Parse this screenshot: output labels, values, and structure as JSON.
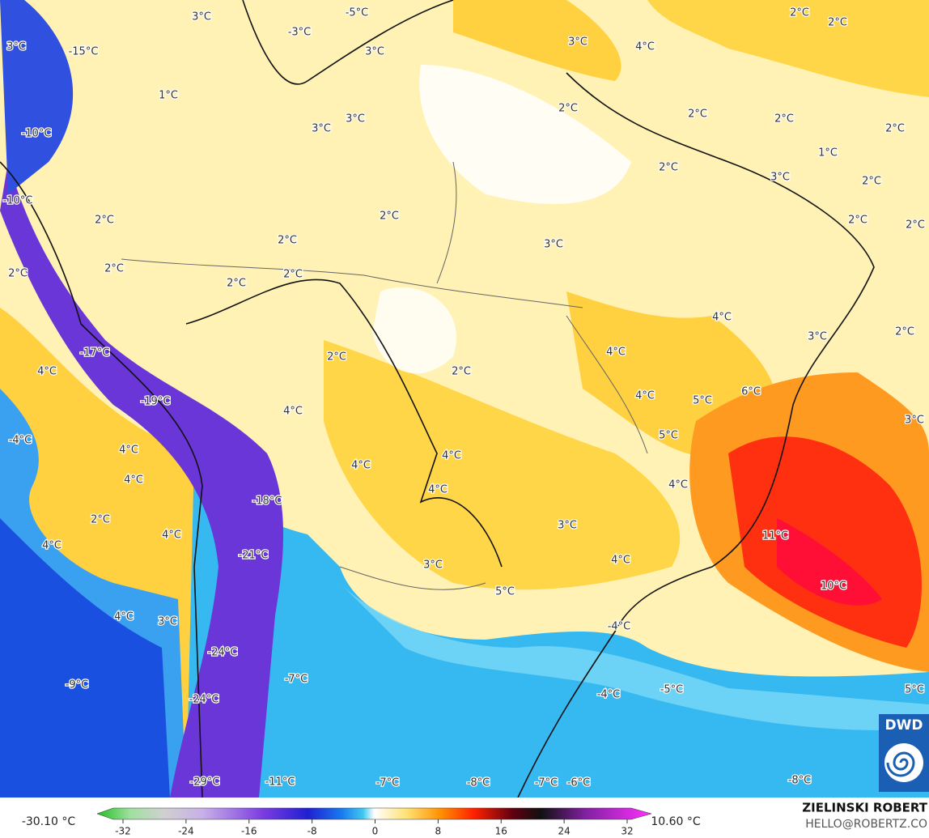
{
  "map": {
    "labels": [
      "3°C",
      "-5°C",
      "-3°C",
      "-15°C",
      "3°C",
      "3°C",
      "3°C",
      "4°C",
      "2°C",
      "2°C",
      "1°C",
      "3°C",
      "3°C",
      "2°C",
      "2°C",
      "2°C",
      "2°C",
      "-10°C",
      "1°C",
      "2°C",
      "3°C",
      "2°C",
      "-10°C",
      "2°C",
      "2°C",
      "2°C",
      "2°C",
      "2°C",
      "3°C",
      "2°C",
      "2°C",
      "2°C",
      "2°C",
      "4°C",
      "3°C",
      "2°C",
      "-17°C",
      "4°C",
      "2°C",
      "4°C",
      "2°C",
      "6°C",
      "4°C",
      "5°C",
      "-19°C",
      "4°C",
      "3°C",
      "-4°C",
      "5°C",
      "4°C",
      "4°C",
      "4°C",
      "4°C",
      "4°C",
      "4°C",
      "-18°C",
      "2°C",
      "3°C",
      "11°C",
      "4°C",
      "4°C",
      "-21°C",
      "4°C",
      "3°C",
      "10°C",
      "5°C",
      "4°C",
      "3°C",
      "-4°C",
      "-24°C",
      "-7°C",
      "-9°C",
      "-5°C",
      "-4°C",
      "5°C",
      "-24°C",
      "-29°C",
      "-11°C",
      "-7°C",
      "-8°C",
      "-7°C",
      "-6°C",
      "-8°C"
    ],
    "colorbar": {
      "min_label": "-30.10 °C",
      "max_label": "10.60 °C",
      "ticks": [
        -32,
        -24,
        -16,
        -8,
        0,
        8,
        16,
        24,
        32
      ]
    }
  },
  "credit": {
    "author": "ZIELINSKI ROBERT",
    "email": "HELLO@ROBERTZ.CO"
  },
  "logo": {
    "text": "DWD"
  }
}
